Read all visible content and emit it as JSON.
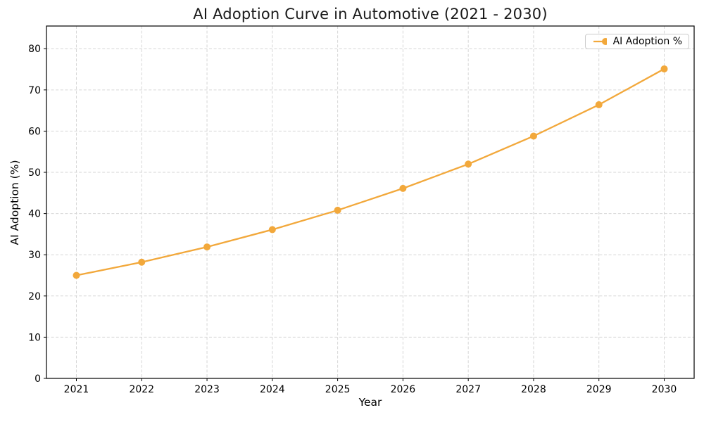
{
  "chart_data": {
    "type": "line",
    "title": "AI Adoption Curve in Automotive (2021 - 2030)",
    "xlabel": "Year",
    "ylabel": "AI Adoption (%)",
    "categories": [
      "2021",
      "2022",
      "2023",
      "2024",
      "2025",
      "2026",
      "2027",
      "2028",
      "2029",
      "2030"
    ],
    "series": [
      {
        "name": "AI Adoption %",
        "color": "#F2A83B",
        "marker": "circle",
        "values": [
          25.0,
          28.2,
          31.9,
          36.1,
          40.8,
          46.1,
          52.0,
          58.8,
          66.4,
          75.1
        ]
      }
    ],
    "yticks": [
      0,
      10,
      20,
      30,
      40,
      50,
      60,
      70,
      80
    ],
    "ylim": [
      0,
      85.5
    ],
    "grid": true,
    "grid_style": "dashed",
    "legend_position": "upper right"
  },
  "colors": {
    "line": "#F2A83B",
    "grid": "#d6d6d6",
    "spine": "#000000",
    "background": "#ffffff"
  }
}
